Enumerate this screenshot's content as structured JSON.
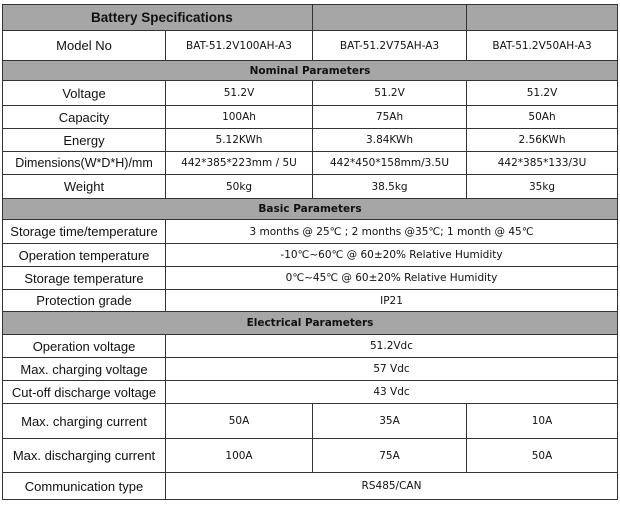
{
  "title": "Battery Specifications",
  "model": {
    "label": "Model No",
    "values": [
      "BAT-51.2V100AH-A3",
      "BAT-51.2V75AH-A3",
      "BAT-51.2V50AH-A3"
    ]
  },
  "nominal": {
    "heading": "Nominal Parameters",
    "rows": [
      {
        "label": "Voltage",
        "values": [
          "51.2V",
          "51.2V",
          "51.2V"
        ]
      },
      {
        "label": "Capacity",
        "values": [
          "100Ah",
          "75Ah",
          "50Ah"
        ]
      },
      {
        "label": "Energy",
        "values": [
          "5.12KWh",
          "3.84KWh",
          "2.56KWh"
        ]
      },
      {
        "label": "Dimensions(W*D*H)/mm",
        "values": [
          "442*385*223mm / 5U",
          "442*450*158mm/3.5U",
          "442*385*133/3U"
        ]
      },
      {
        "label": "Weight",
        "values": [
          "50kg",
          "38.5kg",
          "35kg"
        ]
      }
    ]
  },
  "basic": {
    "heading": "Basic Parameters",
    "rows": [
      {
        "label": "Storage time/temperature",
        "value": "3 months @ 25℃ ; 2 months @35℃; 1 month @ 45℃"
      },
      {
        "label": "Operation temperature",
        "value": "-10℃~60℃ @ 60±20% Relative Humidity"
      },
      {
        "label": "Storage temperature",
        "value": "0℃~45℃ @ 60±20% Relative Humidity"
      },
      {
        "label": "Protection grade",
        "value": "IP21"
      }
    ]
  },
  "electrical": {
    "heading": "Electrical Parameters",
    "rows": [
      {
        "label": "Operation voltage",
        "value": "51.2Vdc"
      },
      {
        "label": "Max. charging voltage",
        "value": "57 Vdc"
      },
      {
        "label": "Cut-off discharge voltage",
        "value": "43 Vdc"
      },
      {
        "label": "Max. charging current",
        "values": [
          "50A",
          "35A",
          "10A"
        ]
      },
      {
        "label": "Max. discharging current",
        "values": [
          "100A",
          "75A",
          "50A"
        ]
      },
      {
        "label": "Communication type",
        "value": "RS485/CAN"
      }
    ]
  }
}
